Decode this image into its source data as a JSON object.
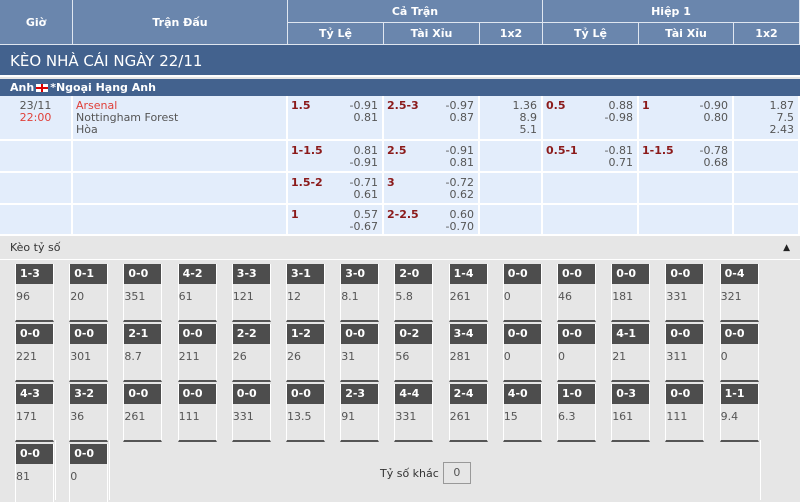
{
  "header": {
    "gio": "Giờ",
    "tran_dau": "Trận Đấu",
    "ca_tran": "Cả Trận",
    "hiep1": "Hiệp 1",
    "ty_le": "Tỷ Lệ",
    "tai_xiu": "Tài Xỉu",
    "x12": "1x2"
  },
  "title": "KÈO NHÀ CÁI NGÀY 22/11",
  "league": {
    "country": "Anh",
    "name": "*Ngoại Hạng Anh"
  },
  "match": {
    "date": "23/11",
    "time": "22:00",
    "home": "Arsenal",
    "away": "Nottingham Forest",
    "draw": "Hòa"
  },
  "rows": [
    {
      "ft_hdp": "1.5",
      "ft_hdp_o": [
        "-0.91",
        "0.81"
      ],
      "ft_ou": "2.5-3",
      "ft_ou_o": [
        "-0.97",
        "0.87"
      ],
      "ft_1x2": [
        "1.36",
        "8.9",
        "5.1"
      ],
      "h1_hdp": "0.5",
      "h1_hdp_o": [
        "0.88",
        "-0.98"
      ],
      "h1_ou": "1",
      "h1_ou_o": [
        "-0.90",
        "0.80"
      ],
      "h1_1x2": [
        "1.87",
        "7.5",
        "2.43"
      ]
    },
    {
      "ft_hdp": "1-1.5",
      "ft_hdp_o": [
        "0.81",
        "-0.91"
      ],
      "ft_ou": "2.5",
      "ft_ou_o": [
        "-0.91",
        "0.81"
      ],
      "ft_1x2": [],
      "h1_hdp": "0.5-1",
      "h1_hdp_o": [
        "-0.81",
        "0.71"
      ],
      "h1_ou": "1-1.5",
      "h1_ou_o": [
        "-0.78",
        "0.68"
      ],
      "h1_1x2": []
    },
    {
      "ft_hdp": "1.5-2",
      "ft_hdp_o": [
        "-0.71",
        "0.61"
      ],
      "ft_ou": "3",
      "ft_ou_o": [
        "-0.72",
        "0.62"
      ],
      "ft_1x2": [],
      "h1_hdp": "",
      "h1_hdp_o": [],
      "h1_ou": "",
      "h1_ou_o": [],
      "h1_1x2": []
    },
    {
      "ft_hdp": "1",
      "ft_hdp_o": [
        "0.57",
        "-0.67"
      ],
      "ft_ou": "2-2.5",
      "ft_ou_o": [
        "0.60",
        "-0.70"
      ],
      "ft_1x2": [],
      "h1_hdp": "",
      "h1_hdp_o": [],
      "h1_ou": "",
      "h1_ou_o": [],
      "h1_1x2": []
    }
  ],
  "correct_score": {
    "label": "Kèo tỷ số",
    "collapse_icon": "triangle-up-icon",
    "cells": [
      [
        [
          "1-3",
          "96"
        ],
        [
          "0-1",
          "20"
        ],
        [
          "0-0",
          "351"
        ],
        [
          "4-2",
          "61"
        ],
        [
          "3-3",
          "121"
        ],
        [
          "3-1",
          "12"
        ],
        [
          "3-0",
          "8.1"
        ],
        [
          "2-0",
          "5.8"
        ],
        [
          "1-4",
          "261"
        ],
        [
          "0-0",
          "0"
        ],
        [
          "0-0",
          "46"
        ],
        [
          "0-0",
          "181"
        ],
        [
          "0-0",
          "331"
        ],
        [
          "0-4",
          "321"
        ]
      ],
      [
        [
          "0-0",
          "221"
        ],
        [
          "0-0",
          "301"
        ],
        [
          "2-1",
          "8.7"
        ],
        [
          "0-0",
          "211"
        ],
        [
          "2-2",
          "26"
        ],
        [
          "1-2",
          "26"
        ],
        [
          "0-0",
          "31"
        ],
        [
          "0-2",
          "56"
        ],
        [
          "3-4",
          "281"
        ],
        [
          "0-0",
          "0"
        ],
        [
          "0-0",
          "0"
        ],
        [
          "4-1",
          "21"
        ],
        [
          "0-0",
          "311"
        ],
        [
          "0-0",
          "0"
        ]
      ],
      [
        [
          "4-3",
          "171"
        ],
        [
          "3-2",
          "36"
        ],
        [
          "0-0",
          "261"
        ],
        [
          "0-0",
          "111"
        ],
        [
          "0-0",
          "331"
        ],
        [
          "0-0",
          "13.5"
        ],
        [
          "2-3",
          "91"
        ],
        [
          "4-4",
          "331"
        ],
        [
          "2-4",
          "261"
        ],
        [
          "4-0",
          "15"
        ],
        [
          "1-0",
          "6.3"
        ],
        [
          "0-3",
          "161"
        ],
        [
          "0-0",
          "111"
        ],
        [
          "1-1",
          "9.4"
        ]
      ],
      [
        [
          "0-0",
          "81"
        ],
        [
          "0-0",
          "0"
        ]
      ]
    ],
    "other_label": "Tỷ số khác",
    "other_value": "0"
  },
  "colors": {
    "header": "#6a86ad",
    "title": "#43628e",
    "row": "#e3edfb",
    "handicap": "#8b1a1a",
    "home": "#e0403a"
  }
}
